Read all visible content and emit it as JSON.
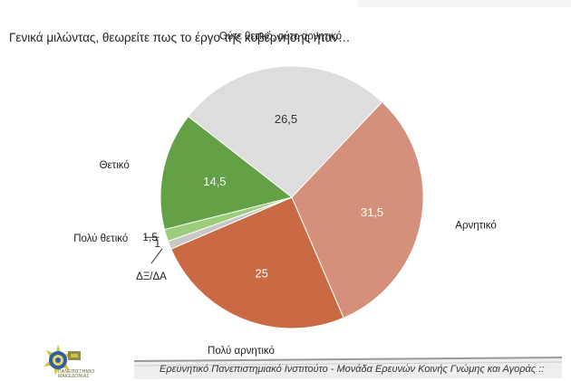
{
  "question": "Γενικά μιλώντας, θεωρείτε πως το έργο της κυβέρνησης ήταν…",
  "footer": "Ερευνητικό Πανεπιστημιακό Ινστιτούτο - Μονάδα Ερευνών Κοινής Γνώμης και Αγοράς ::",
  "logo_text": "ΠΑΝΕΠΙΣΤΗΜΙΟ ΜΑΚΕΔΟΝΙΑΣ",
  "chart_data": {
    "type": "pie",
    "categories": [
      "Ούτε θετικό, ούτε αρνητικό",
      "Αρνητικό",
      "Πολύ αρνητικό",
      "ΔΞ/ΔΑ",
      "Πολύ θετικό",
      "Θετικό"
    ],
    "values": [
      26.5,
      31.5,
      25,
      1,
      1.5,
      14.5
    ],
    "value_labels": [
      "26,5",
      "31,5",
      "25",
      "1",
      "1,5",
      "14,5"
    ],
    "colors": [
      "#dddddd",
      "#d4907a",
      "#c96a45",
      "#c7c7c7",
      "#9ccd7a",
      "#63a046"
    ],
    "value_label_colors": [
      "#333333",
      "#ffffff",
      "#ffffff",
      "#222222",
      "#222222",
      "#ffffff"
    ]
  }
}
